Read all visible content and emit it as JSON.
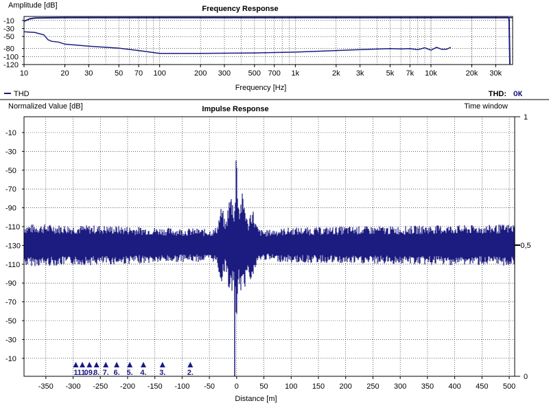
{
  "colors": {
    "trace": "#1b1b80",
    "grid": "#000000",
    "frame": "#000000",
    "background": "#ffffff"
  },
  "chart_data": [
    {
      "type": "line",
      "title": "Frequency Response",
      "ylabel": "Amplitude [dB]",
      "xlabel": "Frequency [Hz]",
      "xscale": "log",
      "xlim": [
        10,
        40000
      ],
      "ylim": [
        -120,
        0
      ],
      "grid": true,
      "legend": {
        "position": "bottom-left",
        "entries": [
          "THD"
        ]
      },
      "status": {
        "label": "THD:",
        "value": "OK"
      },
      "x_ticks": [
        {
          "v": 10,
          "label": "10"
        },
        {
          "v": 20,
          "label": "20"
        },
        {
          "v": 30,
          "label": "30"
        },
        {
          "v": 50,
          "label": "50"
        },
        {
          "v": 70,
          "label": "70"
        },
        {
          "v": 100,
          "label": "100"
        },
        {
          "v": 200,
          "label": "200"
        },
        {
          "v": 300,
          "label": "300"
        },
        {
          "v": 500,
          "label": "500"
        },
        {
          "v": 700,
          "label": "700"
        },
        {
          "v": 1000,
          "label": "1k"
        },
        {
          "v": 2000,
          "label": "2k"
        },
        {
          "v": 3000,
          "label": "3k"
        },
        {
          "v": 5000,
          "label": "5k"
        },
        {
          "v": 7000,
          "label": "7k"
        },
        {
          "v": 10000,
          "label": "10k"
        },
        {
          "v": 20000,
          "label": "20k"
        },
        {
          "v": 30000,
          "label": "30k"
        }
      ],
      "y_ticks": [
        {
          "v": -10,
          "label": "-10"
        },
        {
          "v": -30,
          "label": "-30"
        },
        {
          "v": -50,
          "label": "-50"
        },
        {
          "v": -80,
          "label": "-80"
        },
        {
          "v": -100,
          "label": "-100"
        },
        {
          "v": -120,
          "label": "-120"
        }
      ],
      "series": [
        {
          "name": "Amplitude",
          "x": [
            10,
            11,
            12,
            15,
            20,
            30,
            50,
            70,
            100,
            200,
            500,
            1000,
            2000,
            5000,
            10000,
            20000,
            30000,
            35000,
            37000,
            37500,
            37700,
            38000,
            38200
          ],
          "y": [
            -12,
            -6,
            -4,
            -3.5,
            -3,
            -3,
            -3,
            -3,
            -3,
            -3,
            -3,
            -3,
            -3,
            -3,
            -3,
            -3,
            -3,
            -3,
            -3,
            -4,
            -10,
            -80,
            -120
          ]
        },
        {
          "name": "THD",
          "x": [
            10,
            12,
            14,
            15,
            16,
            18,
            20,
            30,
            50,
            70,
            100,
            200,
            500,
            1000,
            2000,
            5000,
            6000,
            7000,
            8000,
            9000,
            10000,
            11000,
            12000,
            13000,
            14000
          ],
          "y": [
            -38,
            -40,
            -46,
            -58,
            -62,
            -64,
            -69,
            -74,
            -79,
            -85,
            -92,
            -92,
            -91,
            -89,
            -85,
            -80,
            -81,
            -80,
            -83,
            -78,
            -84,
            -77,
            -82,
            -82,
            -77
          ]
        }
      ]
    },
    {
      "type": "line",
      "title": "Impulse Response",
      "ylabel": "Normalized Value [dB]",
      "xlabel": "Distance [m]",
      "y2label": "Time window",
      "xlim": [
        -390,
        510
      ],
      "grid": true,
      "x_ticks": [
        -350,
        -300,
        -250,
        -200,
        -150,
        -100,
        -50,
        0,
        50,
        100,
        150,
        200,
        250,
        300,
        350,
        400,
        450,
        500
      ],
      "x_tick_labels": [
        "-350",
        "-300",
        "-250",
        "-200",
        "-150",
        "-100",
        "-50",
        "0",
        "50",
        "100",
        "150",
        "200",
        "250",
        "300",
        "350",
        "400",
        "450",
        "500"
      ],
      "y_tick_labels": [
        "-10",
        "-30",
        "-50",
        "-70",
        "-90",
        "-110",
        "-130",
        "-110",
        "-90",
        "-70",
        "-50",
        "-30",
        "-10"
      ],
      "y2_ticks": [
        "1",
        "0,5",
        "0"
      ],
      "envelope": {
        "x": [
          -390,
          -350,
          -300,
          -250,
          -200,
          -150,
          -100,
          -70,
          -50,
          -40,
          -35,
          -30,
          -28,
          -25,
          -22,
          -20,
          -17,
          -15,
          -12,
          -10,
          -7,
          -5,
          -2,
          -1,
          0,
          1,
          2,
          5,
          7,
          10,
          12,
          15,
          18,
          20,
          22,
          25,
          28,
          30,
          35,
          40,
          50,
          60,
          80,
          100,
          150,
          200,
          250,
          300,
          350,
          400,
          450,
          500,
          510
        ],
        "mag": [
          112,
          112,
          113,
          113,
          114,
          115,
          116,
          116,
          117,
          116,
          112,
          98,
          95,
          99,
          108,
          110,
          100,
          90,
          85,
          82,
          88,
          96,
          80,
          40,
          20,
          40,
          80,
          95,
          88,
          82,
          85,
          90,
          100,
          110,
          108,
          99,
          96,
          97,
          110,
          116,
          118,
          117,
          116,
          115,
          115,
          114,
          114,
          114,
          113,
          113,
          113,
          112,
          112
        ]
      },
      "markers": [
        {
          "x": -295,
          "label": "1"
        },
        {
          "x": -283,
          "label": "11."
        },
        {
          "x": -270,
          "label": "09."
        },
        {
          "x": -257,
          "label": "8."
        },
        {
          "x": -240,
          "label": "7."
        },
        {
          "x": -220,
          "label": "6."
        },
        {
          "x": -196,
          "label": "5."
        },
        {
          "x": -171,
          "label": "4."
        },
        {
          "x": -136,
          "label": "3."
        },
        {
          "x": -85,
          "label": "2."
        }
      ]
    }
  ]
}
